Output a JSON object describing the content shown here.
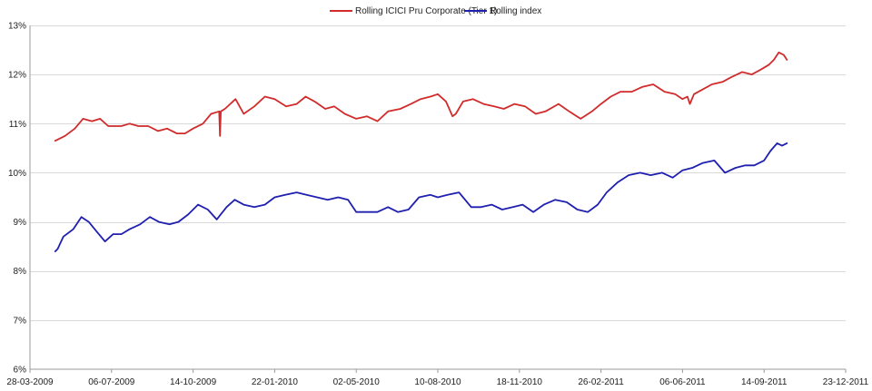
{
  "chart_data": {
    "type": "line",
    "title": "",
    "xlabel": "",
    "ylabel": "",
    "legend_position": "top-center",
    "grid": {
      "horizontal": true,
      "vertical": false
    },
    "xlim": [
      "2009-03-28",
      "2011-12-23"
    ],
    "ylim": [
      6,
      13
    ],
    "y_unit": "%",
    "x_tick_labels": [
      "28-03-2009",
      "06-07-2009",
      "14-10-2009",
      "22-01-2010",
      "02-05-2010",
      "10-08-2010",
      "18-11-2010",
      "26-02-2011",
      "06-06-2011",
      "14-09-2011",
      "23-12-2011"
    ],
    "y_tick_labels": [
      "6%",
      "7%",
      "8%",
      "9%",
      "10%",
      "11%",
      "12%",
      "13%"
    ],
    "y_tick_values": [
      6,
      7,
      8,
      9,
      10,
      11,
      12,
      13
    ],
    "series": [
      {
        "name": "Rolling ICICI Pru Corporate  (Tier 1)",
        "color": "#d12b2b",
        "x": [
          "2009-04-28",
          "2009-05-10",
          "2009-05-22",
          "2009-06-01",
          "2009-06-12",
          "2009-06-22",
          "2009-07-02",
          "2009-07-10",
          "2009-07-18",
          "2009-07-28",
          "2009-08-08",
          "2009-08-20",
          "2009-09-01",
          "2009-09-12",
          "2009-09-24",
          "2009-10-04",
          "2009-10-14",
          "2009-10-26",
          "2009-11-05",
          "2009-11-15",
          "2009-11-16",
          "2009-11-17",
          "2009-11-22",
          "2009-12-05",
          "2009-12-15",
          "2009-12-28",
          "2010-01-10",
          "2010-01-22",
          "2010-02-05",
          "2010-02-18",
          "2010-03-01",
          "2010-03-12",
          "2010-03-25",
          "2010-04-05",
          "2010-04-18",
          "2010-05-02",
          "2010-05-15",
          "2010-05-28",
          "2010-06-10",
          "2010-06-25",
          "2010-07-08",
          "2010-07-20",
          "2010-08-01",
          "2010-08-10",
          "2010-08-20",
          "2010-08-28",
          "2010-09-01",
          "2010-09-10",
          "2010-09-22",
          "2010-10-05",
          "2010-10-18",
          "2010-10-30",
          "2010-11-12",
          "2010-11-25",
          "2010-12-08",
          "2010-12-20",
          "2011-01-05",
          "2011-01-18",
          "2011-02-01",
          "2011-02-15",
          "2011-02-26",
          "2011-03-10",
          "2011-03-22",
          "2011-04-05",
          "2011-04-18",
          "2011-05-01",
          "2011-05-15",
          "2011-05-28",
          "2011-06-06",
          "2011-06-12",
          "2011-06-15",
          "2011-06-20",
          "2011-07-01",
          "2011-07-12",
          "2011-07-25",
          "2011-08-05",
          "2011-08-18",
          "2011-08-30",
          "2011-09-10",
          "2011-09-20",
          "2011-09-26",
          "2011-10-02",
          "2011-10-08",
          "2011-10-12"
        ],
        "values": [
          10.65,
          10.75,
          10.9,
          11.1,
          11.05,
          11.1,
          10.95,
          10.95,
          10.95,
          11.0,
          10.95,
          10.95,
          10.85,
          10.9,
          10.8,
          10.8,
          10.9,
          11.0,
          11.2,
          11.25,
          10.75,
          11.25,
          11.3,
          11.5,
          11.2,
          11.35,
          11.55,
          11.5,
          11.35,
          11.4,
          11.55,
          11.45,
          11.3,
          11.35,
          11.2,
          11.1,
          11.15,
          11.05,
          11.25,
          11.3,
          11.4,
          11.5,
          11.55,
          11.6,
          11.45,
          11.15,
          11.2,
          11.45,
          11.5,
          11.4,
          11.35,
          11.3,
          11.4,
          11.35,
          11.2,
          11.25,
          11.4,
          11.25,
          11.1,
          11.25,
          11.4,
          11.55,
          11.65,
          11.65,
          11.75,
          11.8,
          11.65,
          11.6,
          11.5,
          11.55,
          11.4,
          11.6,
          11.7,
          11.8,
          11.85,
          11.95,
          12.05,
          12.0,
          12.1,
          12.2,
          12.3,
          12.45,
          12.4,
          12.3
        ]
      },
      {
        "name": "Rolling index",
        "color": "#1f1fb0",
        "x": [
          "2009-04-28",
          "2009-05-01",
          "2009-05-08",
          "2009-05-20",
          "2009-05-30",
          "2009-06-08",
          "2009-06-18",
          "2009-06-28",
          "2009-07-08",
          "2009-07-18",
          "2009-07-28",
          "2009-08-10",
          "2009-08-22",
          "2009-09-02",
          "2009-09-15",
          "2009-09-26",
          "2009-10-08",
          "2009-10-20",
          "2009-11-01",
          "2009-11-12",
          "2009-11-24",
          "2009-12-04",
          "2009-12-15",
          "2009-12-28",
          "2010-01-10",
          "2010-01-22",
          "2010-02-04",
          "2010-02-18",
          "2010-03-02",
          "2010-03-15",
          "2010-03-28",
          "2010-04-10",
          "2010-04-22",
          "2010-05-02",
          "2010-05-15",
          "2010-05-28",
          "2010-06-10",
          "2010-06-22",
          "2010-07-05",
          "2010-07-18",
          "2010-08-01",
          "2010-08-10",
          "2010-08-22",
          "2010-09-05",
          "2010-09-20",
          "2010-10-02",
          "2010-10-15",
          "2010-10-28",
          "2010-11-10",
          "2010-11-22",
          "2010-12-05",
          "2010-12-18",
          "2011-01-01",
          "2011-01-15",
          "2011-01-28",
          "2011-02-10",
          "2011-02-22",
          "2011-03-05",
          "2011-03-18",
          "2011-04-01",
          "2011-04-15",
          "2011-04-28",
          "2011-05-12",
          "2011-05-25",
          "2011-06-06",
          "2011-06-18",
          "2011-07-01",
          "2011-07-15",
          "2011-07-28",
          "2011-08-10",
          "2011-08-22",
          "2011-09-02",
          "2011-09-14",
          "2011-09-22",
          "2011-09-30",
          "2011-10-06",
          "2011-10-12"
        ],
        "values": [
          8.4,
          8.45,
          8.7,
          8.85,
          9.1,
          9.0,
          8.8,
          8.6,
          8.75,
          8.75,
          8.85,
          8.95,
          9.1,
          9.0,
          8.95,
          9.0,
          9.15,
          9.35,
          9.25,
          9.05,
          9.3,
          9.45,
          9.35,
          9.3,
          9.35,
          9.5,
          9.55,
          9.6,
          9.55,
          9.5,
          9.45,
          9.5,
          9.45,
          9.2,
          9.2,
          9.2,
          9.3,
          9.2,
          9.25,
          9.5,
          9.55,
          9.5,
          9.55,
          9.6,
          9.3,
          9.3,
          9.35,
          9.25,
          9.3,
          9.35,
          9.2,
          9.35,
          9.45,
          9.4,
          9.25,
          9.2,
          9.35,
          9.6,
          9.8,
          9.95,
          10.0,
          9.95,
          10.0,
          9.9,
          10.05,
          10.1,
          10.2,
          10.25,
          10.0,
          10.1,
          10.15,
          10.15,
          10.25,
          10.45,
          10.6,
          10.55,
          10.6
        ]
      }
    ]
  }
}
